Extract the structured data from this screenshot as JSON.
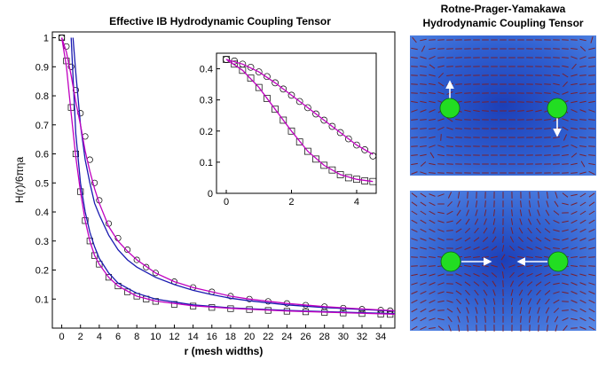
{
  "left_title": "Effective IB Hydrodynamic Coupling Tensor",
  "right_title_line1": "Rotne-Prager-Yamakawa",
  "right_title_line2": "Hydrodynamic Coupling Tensor",
  "colors": {
    "blue_curve": "#1a1ab0",
    "magenta_curve": "#c000c0",
    "sphere": "#22dd22",
    "field_bg": "#2f5fd0",
    "arrow": "#ffffff"
  },
  "chart_data": [
    {
      "type": "scatter",
      "title": "Effective IB Hydrodynamic Coupling Tensor",
      "xlabel": "r (mesh widths)",
      "ylabel": "H(r)/6πηa",
      "xlim": [
        -1,
        35.5
      ],
      "ylim": [
        0,
        1.02
      ],
      "x_ticks": [
        0,
        2,
        4,
        6,
        8,
        10,
        12,
        14,
        16,
        18,
        20,
        22,
        24,
        26,
        28,
        30,
        32,
        34
      ],
      "y_ticks": [
        0.1,
        0.2,
        0.3,
        0.4,
        0.5,
        0.6,
        0.7,
        0.8,
        0.9,
        1
      ],
      "grid": false,
      "series": [
        {
          "marker": "circle",
          "x": [
            0,
            0.5,
            1,
            1.5,
            2,
            2.5,
            3,
            3.5,
            4,
            5,
            6,
            7,
            8,
            9,
            10,
            12,
            14,
            16,
            18,
            20,
            22,
            24,
            26,
            28,
            30,
            32,
            34,
            35
          ],
          "y": [
            1.0,
            0.97,
            0.9,
            0.82,
            0.74,
            0.66,
            0.58,
            0.5,
            0.44,
            0.36,
            0.31,
            0.27,
            0.235,
            0.21,
            0.19,
            0.16,
            0.14,
            0.125,
            0.11,
            0.1,
            0.092,
            0.085,
            0.079,
            0.074,
            0.069,
            0.065,
            0.062,
            0.06
          ]
        },
        {
          "marker": "square",
          "x": [
            0,
            0.5,
            1,
            1.5,
            2,
            2.5,
            3,
            3.5,
            4,
            5,
            6,
            7,
            8,
            9,
            10,
            12,
            14,
            16,
            18,
            20,
            22,
            24,
            26,
            28,
            30,
            32,
            34,
            35
          ],
          "y": [
            1.0,
            0.92,
            0.76,
            0.6,
            0.47,
            0.37,
            0.3,
            0.25,
            0.22,
            0.175,
            0.145,
            0.125,
            0.11,
            0.1,
            0.092,
            0.082,
            0.076,
            0.071,
            0.067,
            0.064,
            0.061,
            0.058,
            0.056,
            0.054,
            0.052,
            0.05,
            0.048,
            0.047
          ]
        },
        {
          "marker": "line",
          "color": "blue",
          "x": [
            1.2,
            1.5,
            2,
            2.5,
            3,
            3.5,
            4,
            5,
            6,
            7,
            8,
            10,
            12,
            14,
            16,
            18,
            20,
            24,
            28,
            32,
            35.5
          ],
          "y": [
            1.0,
            0.88,
            0.7,
            0.58,
            0.5,
            0.43,
            0.39,
            0.32,
            0.27,
            0.235,
            0.21,
            0.175,
            0.15,
            0.13,
            0.115,
            0.103,
            0.094,
            0.08,
            0.071,
            0.064,
            0.059
          ]
        },
        {
          "marker": "line",
          "color": "blue",
          "x": [
            1.0,
            1.5,
            2,
            2.5,
            3,
            3.5,
            4,
            5,
            6,
            8,
            10,
            14,
            18,
            24,
            30,
            35.5
          ],
          "y": [
            1.0,
            0.67,
            0.5,
            0.4,
            0.33,
            0.28,
            0.24,
            0.19,
            0.155,
            0.12,
            0.1,
            0.08,
            0.07,
            0.061,
            0.055,
            0.05
          ]
        },
        {
          "marker": "line",
          "color": "magenta",
          "x": [
            0,
            0.5,
            1,
            1.5,
            2,
            2.5,
            3,
            3.5,
            4,
            5,
            6,
            7,
            8,
            10,
            12,
            14,
            16,
            18,
            20,
            24,
            28,
            32,
            35.5
          ],
          "y": [
            1.0,
            0.95,
            0.87,
            0.78,
            0.7,
            0.61,
            0.54,
            0.48,
            0.43,
            0.35,
            0.3,
            0.265,
            0.235,
            0.19,
            0.16,
            0.14,
            0.125,
            0.11,
            0.1,
            0.085,
            0.074,
            0.066,
            0.06
          ]
        },
        {
          "marker": "line",
          "color": "magenta",
          "x": [
            0,
            0.5,
            1,
            1.5,
            2,
            2.5,
            3,
            3.5,
            4,
            5,
            6,
            8,
            10,
            14,
            18,
            24,
            30,
            35.5
          ],
          "y": [
            1.0,
            0.9,
            0.74,
            0.59,
            0.47,
            0.37,
            0.3,
            0.25,
            0.22,
            0.175,
            0.145,
            0.11,
            0.093,
            0.077,
            0.068,
            0.059,
            0.053,
            0.048
          ]
        }
      ]
    },
    {
      "type": "scatter",
      "title": "",
      "xlim": [
        -0.3,
        4.6
      ],
      "ylim": [
        0,
        0.45
      ],
      "x_ticks": [
        0,
        2,
        4
      ],
      "y_ticks": [
        0,
        0.1,
        0.2,
        0.3,
        0.4
      ],
      "grid": false,
      "series": [
        {
          "marker": "circle",
          "x": [
            0,
            0.25,
            0.5,
            0.75,
            1,
            1.25,
            1.5,
            1.75,
            2,
            2.25,
            2.5,
            2.75,
            3,
            3.25,
            3.5,
            3.75,
            4,
            4.25,
            4.5
          ],
          "y": [
            0.43,
            0.425,
            0.415,
            0.405,
            0.39,
            0.375,
            0.355,
            0.335,
            0.315,
            0.295,
            0.275,
            0.255,
            0.235,
            0.215,
            0.195,
            0.175,
            0.155,
            0.14,
            0.12
          ]
        },
        {
          "marker": "square",
          "x": [
            0,
            0.25,
            0.5,
            0.75,
            1,
            1.25,
            1.5,
            1.75,
            2,
            2.25,
            2.5,
            2.75,
            3,
            3.25,
            3.5,
            3.75,
            4,
            4.25,
            4.5
          ],
          "y": [
            0.43,
            0.415,
            0.395,
            0.37,
            0.34,
            0.305,
            0.27,
            0.235,
            0.2,
            0.165,
            0.135,
            0.11,
            0.09,
            0.075,
            0.06,
            0.05,
            0.045,
            0.04,
            0.038
          ]
        },
        {
          "marker": "line",
          "color": "magenta",
          "x": [
            0,
            0.5,
            1,
            1.5,
            2,
            2.5,
            3,
            3.5,
            4,
            4.5
          ],
          "y": [
            0.43,
            0.415,
            0.39,
            0.355,
            0.315,
            0.275,
            0.235,
            0.195,
            0.155,
            0.125
          ]
        },
        {
          "marker": "line",
          "color": "magenta",
          "x": [
            0,
            0.5,
            1,
            1.5,
            2,
            2.5,
            3,
            3.5,
            4,
            4.5
          ],
          "y": [
            0.43,
            0.395,
            0.34,
            0.27,
            0.2,
            0.135,
            0.09,
            0.06,
            0.045,
            0.038
          ]
        }
      ]
    }
  ]
}
